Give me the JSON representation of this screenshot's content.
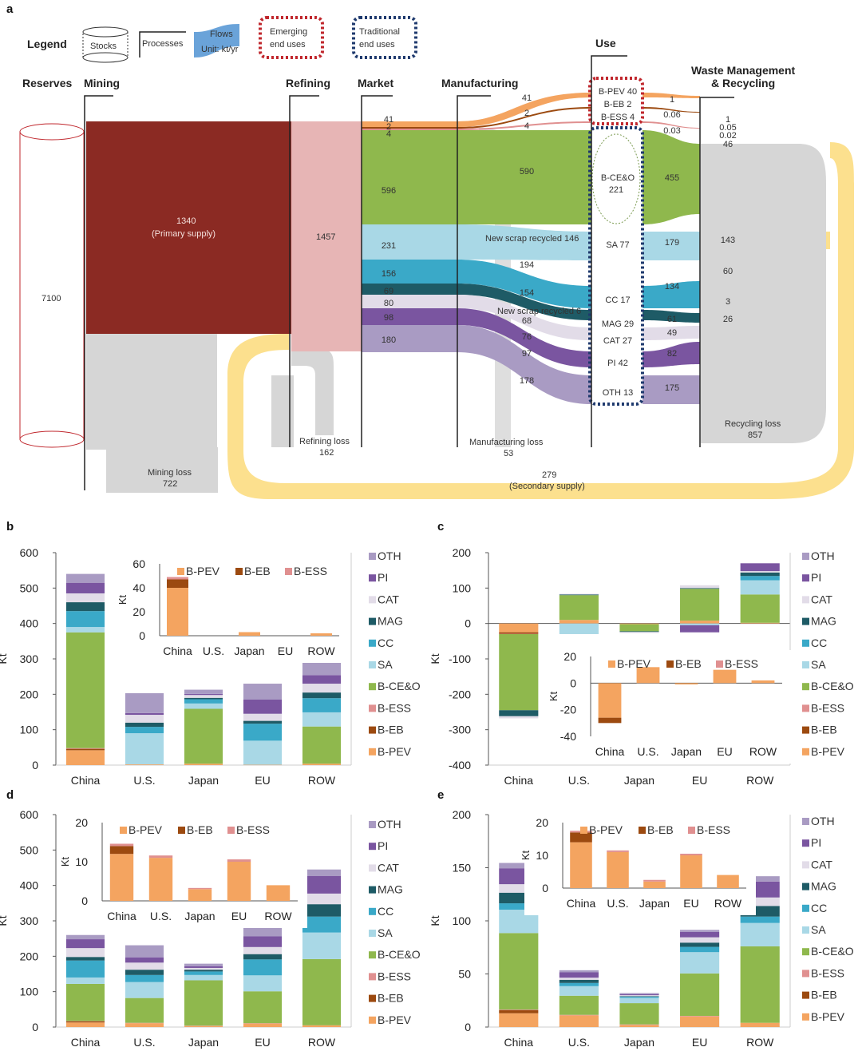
{
  "colors": {
    "B-PEV": "#f4a460",
    "B-EB": "#9c4a10",
    "B-ESS": "#e09090",
    "B-CE&O": "#8fb84d",
    "SA": "#a9d8e6",
    "CC": "#3aa9c8",
    "MAG": "#1e5b66",
    "CAT": "#e2dce8",
    "PI": "#7a55a0",
    "OTH": "#a99bc3",
    "reserves": "#ffffff",
    "mining": "#8b2a23",
    "refining": "#e7b5b5",
    "grey": "#d6d6d6",
    "secondary": "#fce08e",
    "legendFlow": "#6aa3d9"
  },
  "sankey": {
    "panel": "a",
    "legend": {
      "title": "Legend",
      "stocks": "Stocks",
      "processes": "Processes",
      "flows": "Flows",
      "unit": "Unit: kt/yr",
      "emerging1": "Emerging",
      "emerging2": "end uses",
      "traditional1": "Traditional",
      "traditional2": "end uses"
    },
    "headers": {
      "reserves": "Reserves",
      "mining": "Mining",
      "refining": "Refining",
      "market": "Market",
      "manufacturing": "Manufacturing",
      "use": "Use",
      "waste1": "Waste Management",
      "waste2": "& Recycling"
    },
    "reserves": "7100",
    "primary1": "1340",
    "primary2": "(Primary supply)",
    "refining": "1457",
    "mining_loss1": "Mining loss",
    "mining_loss2": "722",
    "refining_loss1": "Refining loss",
    "refining_loss2": "162",
    "mfg_loss1": "Manufacturing loss",
    "mfg_loss2": "53",
    "recycling_loss1": "Recycling loss",
    "recycling_loss2": "857",
    "secondary1": "279",
    "secondary2": "(Secondary supply)",
    "new_scrap1": "New scrap recycled 146",
    "new_scrap2": "New scrap recycled 6",
    "market_vals": [
      "41",
      "2",
      "4",
      "596",
      "231",
      "156",
      "69",
      "80",
      "98",
      "180"
    ],
    "mfg_vals": [
      "41",
      "2",
      "4",
      "590",
      "194",
      "154",
      "68",
      "76",
      "97",
      "178"
    ],
    "use_labels": [
      "B-PEV 40",
      "B-EB 2",
      "B-ESS 4",
      "B-CE&O",
      "221",
      "SA 77",
      "CC 17",
      "MAG 29",
      "CAT 27",
      "PI 42",
      "OTH 13"
    ],
    "waste_in": [
      "1",
      "0.06",
      "0.03",
      "455",
      "179",
      "134",
      "61",
      "49",
      "82",
      "175"
    ],
    "recyc_out": [
      "1",
      "0.05",
      "0.02",
      "46",
      "143",
      "60",
      "3",
      "26"
    ]
  },
  "chart_data": [
    {
      "panel": "b",
      "type": "bar",
      "stacked": true,
      "categories": [
        "China",
        "U.S.",
        "Japan",
        "EU",
        "ROW"
      ],
      "ylim": [
        0,
        600
      ],
      "yticks": [
        0,
        100,
        200,
        300,
        400,
        500,
        600
      ],
      "ylabel": "Kt",
      "series": [
        {
          "name": "B-PEV",
          "values": [
            42,
            2,
            4,
            1,
            4
          ]
        },
        {
          "name": "B-EB",
          "values": [
            4,
            0,
            0,
            0,
            0
          ]
        },
        {
          "name": "B-ESS",
          "values": [
            2,
            0,
            0,
            0,
            0
          ]
        },
        {
          "name": "B-CE&O",
          "values": [
            327,
            0,
            155,
            0,
            105
          ]
        },
        {
          "name": "SA",
          "values": [
            15,
            88,
            15,
            68,
            40
          ]
        },
        {
          "name": "CC",
          "values": [
            45,
            18,
            12,
            48,
            40
          ]
        },
        {
          "name": "MAG",
          "values": [
            25,
            12,
            4,
            8,
            16
          ]
        },
        {
          "name": "CAT",
          "values": [
            25,
            22,
            8,
            20,
            25
          ]
        },
        {
          "name": "PI",
          "values": [
            30,
            5,
            3,
            40,
            24
          ]
        },
        {
          "name": "OTH",
          "values": [
            25,
            56,
            12,
            45,
            46
          ]
        }
      ],
      "inset": {
        "ylim": [
          0,
          60
        ],
        "yticks": [
          0,
          20,
          40,
          60
        ],
        "ylabel": "Kt",
        "series": [
          {
            "name": "B-PEV",
            "values": [
              40,
              0,
              3,
              0,
              2
            ]
          },
          {
            "name": "B-EB",
            "values": [
              7,
              0,
              0,
              0,
              0
            ]
          },
          {
            "name": "B-ESS",
            "values": [
              2,
              0,
              0,
              0,
              0
            ]
          }
        ]
      }
    },
    {
      "panel": "c",
      "type": "bar",
      "stacked": true,
      "categories": [
        "China",
        "U.S.",
        "Japan",
        "EU",
        "ROW"
      ],
      "ylim": [
        -400,
        200
      ],
      "yticks": [
        -400,
        -300,
        -200,
        -100,
        0,
        100,
        200
      ],
      "ylabel": "Kt",
      "series": [
        {
          "name": "B-PEV",
          "values": [
            -25,
            10,
            -2,
            8,
            2
          ]
        },
        {
          "name": "B-EB",
          "values": [
            -4,
            0,
            0,
            0,
            0
          ]
        },
        {
          "name": "B-ESS",
          "values": [
            -1,
            0,
            0,
            0,
            0
          ]
        },
        {
          "name": "B-CE&O",
          "values": [
            -215,
            70,
            -20,
            90,
            80
          ]
        },
        {
          "name": "SA",
          "values": [
            0,
            -30,
            0,
            -5,
            40
          ]
        },
        {
          "name": "CC",
          "values": [
            0,
            0,
            0,
            0,
            12
          ]
        },
        {
          "name": "MAG",
          "values": [
            -17,
            2,
            -2,
            2,
            10
          ]
        },
        {
          "name": "CAT",
          "values": [
            -6,
            2,
            -3,
            8,
            4
          ]
        },
        {
          "name": "PI",
          "values": [
            0,
            0,
            0,
            -20,
            22
          ]
        },
        {
          "name": "OTH",
          "values": [
            0,
            0,
            0,
            0,
            0
          ]
        }
      ],
      "inset": {
        "ylim": [
          -40,
          20
        ],
        "yticks": [
          -40,
          -20,
          0,
          20
        ],
        "ylabel": "Kt",
        "series": [
          {
            "name": "B-PEV",
            "values": [
              -26,
              12,
              -1,
              10,
              2
            ]
          },
          {
            "name": "B-EB",
            "values": [
              -4,
              0,
              0,
              0,
              0
            ]
          },
          {
            "name": "B-ESS",
            "values": [
              0,
              0,
              0,
              0,
              0
            ]
          }
        ]
      }
    },
    {
      "panel": "d",
      "type": "bar",
      "stacked": true,
      "categories": [
        "China",
        "U.S.",
        "Japan",
        "EU",
        "ROW"
      ],
      "ylim": [
        0,
        600
      ],
      "yticks": [
        0,
        100,
        200,
        300,
        400,
        500,
        600
      ],
      "ylabel": "Kt",
      "series": [
        {
          "name": "B-PEV",
          "values": [
            13,
            11,
            3,
            10,
            5
          ]
        },
        {
          "name": "B-EB",
          "values": [
            3,
            0,
            0,
            0,
            0
          ]
        },
        {
          "name": "B-ESS",
          "values": [
            1,
            1,
            1,
            1,
            0
          ]
        },
        {
          "name": "B-CE&O",
          "values": [
            105,
            70,
            128,
            90,
            187
          ]
        },
        {
          "name": "SA",
          "values": [
            18,
            45,
            15,
            45,
            75
          ]
        },
        {
          "name": "CC",
          "values": [
            48,
            20,
            10,
            45,
            45
          ]
        },
        {
          "name": "MAG",
          "values": [
            10,
            15,
            5,
            15,
            35
          ]
        },
        {
          "name": "CAT",
          "values": [
            25,
            20,
            5,
            20,
            30
          ]
        },
        {
          "name": "PI",
          "values": [
            25,
            15,
            5,
            30,
            50
          ]
        },
        {
          "name": "OTH",
          "values": [
            12,
            34,
            7,
            24,
            18
          ]
        }
      ],
      "inset": {
        "ylim": [
          0,
          20
        ],
        "yticks": [
          0,
          10,
          20
        ],
        "ylabel": "Kt",
        "series": [
          {
            "name": "B-PEV",
            "values": [
              12,
              11,
              3,
              10,
              4
            ]
          },
          {
            "name": "B-EB",
            "values": [
              2,
              0,
              0,
              0,
              0
            ]
          },
          {
            "name": "B-ESS",
            "values": [
              0.6,
              0.6,
              0.3,
              0.6,
              0
            ]
          }
        ]
      }
    },
    {
      "panel": "e",
      "type": "bar",
      "stacked": true,
      "categories": [
        "China",
        "U.S.",
        "Japan",
        "EU",
        "ROW"
      ],
      "ylim": [
        0,
        200
      ],
      "yticks": [
        0,
        50,
        100,
        150,
        200
      ],
      "ylabel": "Kt",
      "series": [
        {
          "name": "B-PEV",
          "values": [
            13,
            11,
            2,
            10,
            4
          ]
        },
        {
          "name": "B-EB",
          "values": [
            3,
            0,
            0,
            0,
            0
          ]
        },
        {
          "name": "B-ESS",
          "values": [
            0.5,
            0.5,
            0.5,
            0.5,
            0
          ]
        },
        {
          "name": "B-CE&O",
          "values": [
            72,
            18,
            20,
            40,
            72
          ]
        },
        {
          "name": "SA",
          "values": [
            22,
            9,
            5,
            20,
            22
          ]
        },
        {
          "name": "CC",
          "values": [
            6,
            3,
            1,
            5,
            6
          ]
        },
        {
          "name": "MAG",
          "values": [
            10,
            3,
            0.5,
            4,
            10
          ]
        },
        {
          "name": "CAT",
          "values": [
            8,
            2,
            1,
            5,
            8
          ]
        },
        {
          "name": "PI",
          "values": [
            15,
            5,
            1,
            5,
            15
          ]
        },
        {
          "name": "OTH",
          "values": [
            5,
            2,
            1,
            2,
            5
          ]
        }
      ],
      "inset": {
        "ylim": [
          0,
          20
        ],
        "yticks": [
          0,
          10,
          20
        ],
        "ylabel": "Kt",
        "series": [
          {
            "name": "B-PEV",
            "values": [
              14,
              11,
              2,
              10,
              4
            ]
          },
          {
            "name": "B-EB",
            "values": [
              3,
              0,
              0,
              0,
              0
            ]
          },
          {
            "name": "B-ESS",
            "values": [
              0.5,
              0.5,
              0.5,
              0.5,
              0
            ]
          }
        ]
      }
    }
  ],
  "legend_names": [
    "OTH",
    "PI",
    "CAT",
    "MAG",
    "CC",
    "SA",
    "B-CE&O",
    "B-ESS",
    "B-EB",
    "B-PEV"
  ],
  "inset_legend": [
    "B-PEV",
    "B-EB",
    "B-ESS"
  ]
}
